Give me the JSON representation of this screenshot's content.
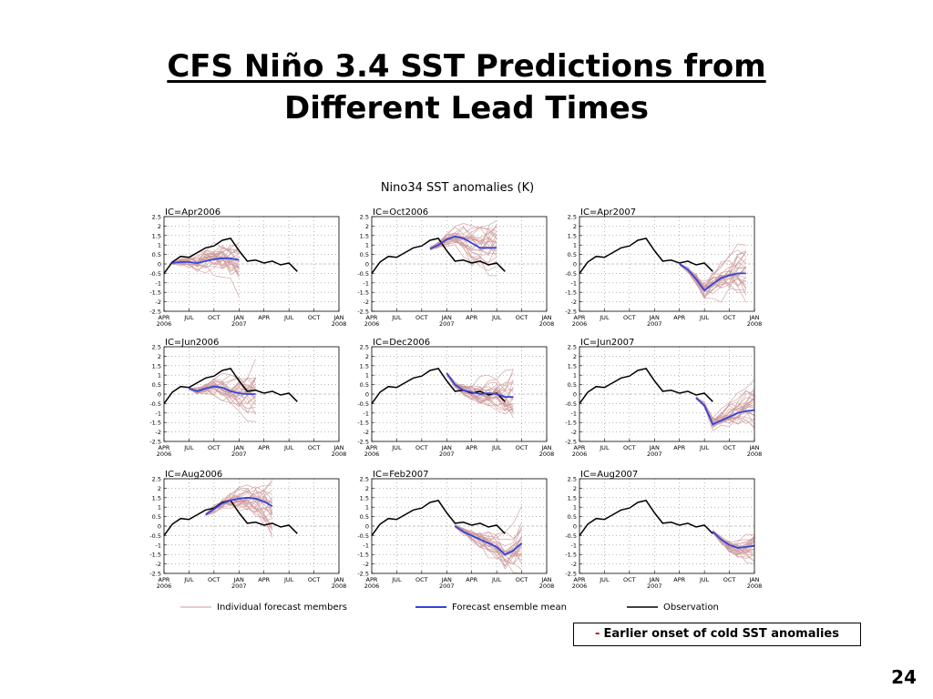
{
  "slide": {
    "title_line1": "CFS Niño 3.4 SST Predictions from",
    "title_line2": "Different Lead Times",
    "callout_dash": "-",
    "callout_text": "Earlier onset of cold SST anomalies",
    "page_number": "24"
  },
  "figure": {
    "title": "Nino34 SST anomalies (K)",
    "legend": [
      {
        "label": "Individual forecast members",
        "color": "#cc9999"
      },
      {
        "label": "Forecast ensemble mean",
        "color": "#3344dd"
      },
      {
        "label": "Observation",
        "color": "#000000"
      }
    ]
  },
  "chart_data": {
    "type": "line",
    "ylim": [
      -2.5,
      2.5
    ],
    "yticks": [
      -2.5,
      -2,
      -1.5,
      -1,
      -0.5,
      0,
      0.5,
      1,
      1.5,
      2,
      2.5
    ],
    "ytick_labels": [
      "-2.5",
      "-2",
      "-1.5",
      "-1",
      "-0.5",
      "0",
      "0.5",
      "1",
      "1.5",
      "2",
      "2.5"
    ],
    "xlim": [
      0,
      21
    ],
    "x_ticks": [
      {
        "x": 0,
        "line1": "APR",
        "line2": "2006"
      },
      {
        "x": 3,
        "line1": "JUL",
        "line2": ""
      },
      {
        "x": 6,
        "line1": "OCT",
        "line2": ""
      },
      {
        "x": 9,
        "line1": "JAN",
        "line2": "2007"
      },
      {
        "x": 12,
        "line1": "APR",
        "line2": ""
      },
      {
        "x": 15,
        "line1": "JUL",
        "line2": ""
      },
      {
        "x": 18,
        "line1": "OCT",
        "line2": ""
      },
      {
        "x": 21,
        "line1": "JAN",
        "line2": "2008"
      }
    ],
    "observation": {
      "x": [
        0,
        1,
        2,
        3,
        4,
        5,
        6,
        7,
        8,
        9,
        10,
        11,
        12,
        13,
        14,
        15,
        16
      ],
      "y": [
        -0.5,
        0.1,
        0.4,
        0.35,
        0.6,
        0.85,
        0.95,
        1.25,
        1.35,
        0.7,
        0.15,
        0.2,
        0.05,
        0.15,
        -0.05,
        0.05,
        -0.4
      ]
    },
    "panels": [
      {
        "ic": "IC=Apr2006",
        "mean": {
          "x": [
            1,
            2,
            3,
            4,
            5,
            6,
            7,
            8,
            9
          ],
          "y": [
            0.05,
            0.1,
            0.1,
            0.05,
            0.15,
            0.25,
            0.3,
            0.3,
            0.2
          ]
        }
      },
      {
        "ic": "IC=Oct2006",
        "mean": {
          "x": [
            7,
            8,
            9,
            10,
            11,
            12,
            13,
            14,
            15
          ],
          "y": [
            0.8,
            1.0,
            1.3,
            1.45,
            1.35,
            1.1,
            0.85,
            0.85,
            0.85
          ]
        }
      },
      {
        "ic": "IC=Apr2007",
        "mean": {
          "x": [
            12,
            13,
            14,
            15,
            16,
            17,
            18,
            19,
            20
          ],
          "y": [
            0.0,
            -0.3,
            -0.8,
            -1.4,
            -1.05,
            -0.75,
            -0.6,
            -0.5,
            -0.5
          ]
        }
      },
      {
        "ic": "IC=Jun2006",
        "mean": {
          "x": [
            3,
            4,
            5,
            6,
            7,
            8,
            9,
            10,
            11
          ],
          "y": [
            0.3,
            0.15,
            0.3,
            0.4,
            0.35,
            0.15,
            0.05,
            0.0,
            0.0
          ]
        }
      },
      {
        "ic": "IC=Dec2006",
        "mean": {
          "x": [
            9,
            10,
            11,
            12,
            13,
            14,
            15,
            16,
            17
          ],
          "y": [
            1.1,
            0.5,
            0.2,
            0.1,
            0.0,
            0.05,
            0.0,
            -0.15,
            -0.15
          ]
        }
      },
      {
        "ic": "IC=Jun2007",
        "mean": {
          "x": [
            14,
            15,
            16,
            17,
            18,
            19,
            20,
            21
          ],
          "y": [
            -0.2,
            -0.6,
            -1.6,
            -1.4,
            -1.2,
            -1.0,
            -0.9,
            -0.85
          ]
        }
      },
      {
        "ic": "IC=Aug2006",
        "mean": {
          "x": [
            5,
            6,
            7,
            8,
            9,
            10,
            11,
            12,
            13
          ],
          "y": [
            0.6,
            0.9,
            1.2,
            1.35,
            1.45,
            1.5,
            1.45,
            1.3,
            1.05
          ]
        }
      },
      {
        "ic": "IC=Feb2007",
        "mean": {
          "x": [
            10,
            11,
            12,
            13,
            14,
            15,
            16,
            17,
            18
          ],
          "y": [
            0.0,
            -0.3,
            -0.5,
            -0.7,
            -0.9,
            -1.1,
            -1.5,
            -1.3,
            -0.9
          ]
        }
      },
      {
        "ic": "IC=Aug2007",
        "mean": {
          "x": [
            16,
            17,
            18,
            19,
            20,
            21
          ],
          "y": [
            -0.3,
            -0.7,
            -1.0,
            -1.15,
            -1.1,
            -1.05
          ]
        }
      }
    ]
  }
}
